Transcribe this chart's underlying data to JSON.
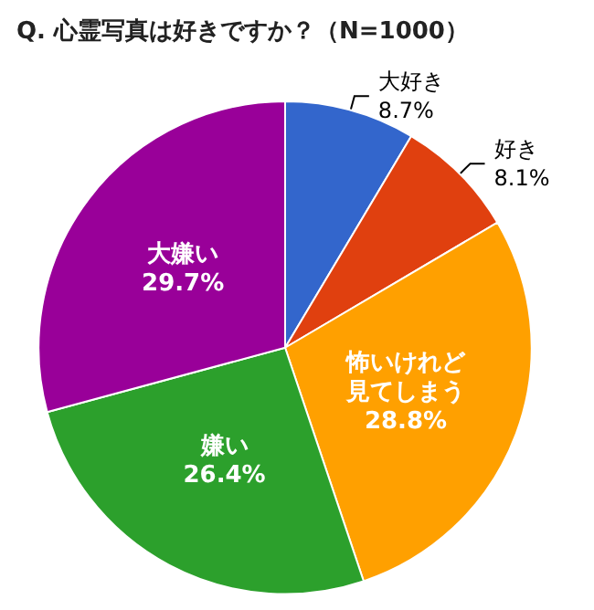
{
  "chart_data": {
    "type": "pie",
    "title": "Q. 心霊写真は好きですか？（N=1000）",
    "categories": [
      "大好き",
      "好き",
      "怖いけれど見てしまう",
      "嫌い",
      "大嫌い"
    ],
    "values": [
      8.7,
      8.1,
      28.8,
      26.4,
      29.7
    ],
    "value_labels": [
      "8.7%",
      "8.1%",
      "28.8%",
      "26.4%",
      "29.7%"
    ],
    "colors": [
      "#3366cc",
      "#e0400f",
      "#ffa000",
      "#2ca02c",
      "#990099"
    ],
    "legend": false
  }
}
